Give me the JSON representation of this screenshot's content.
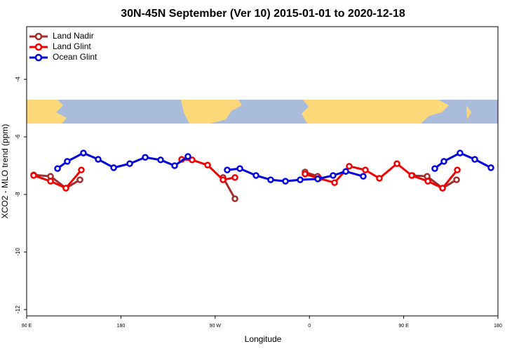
{
  "chart_data": {
    "type": "line",
    "title": "30N-45N September (Ver 10)   2015-01-01 to 2020-12-18",
    "x_label": "Longitude",
    "y_label": "XCO2 - MLO trend (ppm)",
    "xlim": [
      90,
      540
    ],
    "xticks": [
      {
        "value": 90,
        "label": "90 E"
      },
      180,
      {
        "value": 270,
        "label": "90 W"
      },
      {
        "value": 360,
        "label": "0"
      },
      {
        "value": 450,
        "label": "90 E"
      },
      {
        "value": 540,
        "label": "180"
      }
    ],
    "ylim": [
      -12.22,
      -2.17
    ],
    "yticks": [
      -4,
      -6,
      -8,
      -10,
      -12
    ],
    "legend": "upper-left",
    "series": [
      {
        "name": "Land Nadir",
        "color": "#a52a2a",
        "x": [
          96.7,
          112.8,
          127.5,
          140.9,
          null,
          277.5,
          288.9,
          null,
          355.8,
          367.9,
          null,
          458.3,
          472.4,
          487.1,
          500.5
        ],
        "values": [
          -7.32,
          -7.37,
          -7.78,
          -7.49,
          null,
          -7.41,
          -8.15,
          null,
          -7.22,
          -7.37,
          null,
          -7.34,
          -7.37,
          -7.78,
          -7.49
        ]
      },
      {
        "name": "Land Glint",
        "color": "#ee0000",
        "x": [
          96.7,
          112.8,
          127.5,
          142.2,
          null,
          238.0,
          248.0,
          262.8,
          277.5,
          288.9,
          null,
          355.8,
          369.2,
          384.0,
          398.0,
          413.4,
          426.8,
          443.6,
          457.6,
          473.1,
          487.1,
          501.2
        ],
        "values": [
          -7.34,
          -7.54,
          -7.78,
          -7.15,
          null,
          -6.78,
          -6.8,
          -6.98,
          -7.49,
          -7.41,
          null,
          -7.29,
          -7.44,
          -7.59,
          -7.02,
          -7.15,
          -7.44,
          -6.93,
          -7.34,
          -7.54,
          -7.78,
          -7.15
        ]
      },
      {
        "name": "Ocean Glint",
        "color": "#0000dd",
        "x": [
          119.5,
          128.8,
          144.2,
          158.3,
          173.1,
          188.4,
          203.2,
          217.9,
          231.3,
          244.0,
          null,
          281.5,
          293.6,
          309.0,
          323.0,
          337.1,
          351.2,
          367.9,
          382.6,
          394.7,
          411.4,
          null,
          479.7,
          488.4,
          503.8,
          517.9,
          533.3
        ],
        "values": [
          -7.1,
          -6.85,
          -6.56,
          -6.78,
          -7.07,
          -6.93,
          -6.71,
          -6.8,
          -7.0,
          -6.68,
          null,
          -7.15,
          -7.1,
          -7.34,
          -7.49,
          -7.54,
          -7.49,
          -7.46,
          -7.34,
          -7.2,
          -7.37,
          null,
          -7.1,
          -6.85,
          -6.56,
          -6.78,
          -7.07
        ]
      }
    ]
  }
}
